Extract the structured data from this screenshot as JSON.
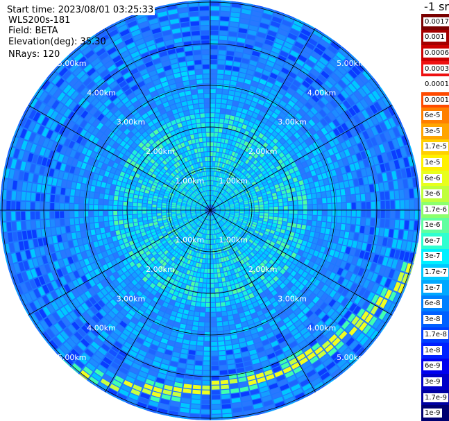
{
  "header": {
    "start_time": "Start time: 2023/08/01 03:25:33",
    "instrument": "WLS200s-181",
    "field": "Field: BETA",
    "elevation": "Elevation(deg): 35.30",
    "nrays": "NRays: 120"
  },
  "unit_label": "-1 sr",
  "range_labels": [
    "1.00km",
    "2.00km",
    "3.00km",
    "4.00km",
    "5.00km"
  ],
  "colorbar": {
    "ticks": [
      "0.0017",
      "0.001",
      "0.0006",
      "0.0003",
      "0.00017",
      "0.0001",
      "6e-5",
      "3e-5",
      "1.7e-5",
      "1e-5",
      "6e-6",
      "3e-6",
      "1.7e-6",
      "1e-6",
      "6e-7",
      "3e-7",
      "1.7e-7",
      "1e-7",
      "6e-8",
      "3e-8",
      "1.7e-8",
      "1e-8",
      "6e-9",
      "3e-9",
      "1.7e-9",
      "1e-9"
    ],
    "colors": [
      "#7a0000",
      "#a50000",
      "#cc0000",
      "#ee1010",
      "#ffffff",
      "#ff4a00",
      "#ff7f00",
      "#ffa500",
      "#ffd000",
      "#fff000",
      "#e8ff1c",
      "#c0ff3c",
      "#8cff6c",
      "#60ffa0",
      "#30ffd0",
      "#00f0ff",
      "#00c8ff",
      "#00a8ff",
      "#0080ff",
      "#0060ff",
      "#0040ff",
      "#0020ff",
      "#0000ee",
      "#0000c8",
      "#0000a0",
      "#000070"
    ]
  },
  "colors": {
    "background": "#ffffff",
    "grid_line": "#000000",
    "range_label": "#ffffff"
  }
}
